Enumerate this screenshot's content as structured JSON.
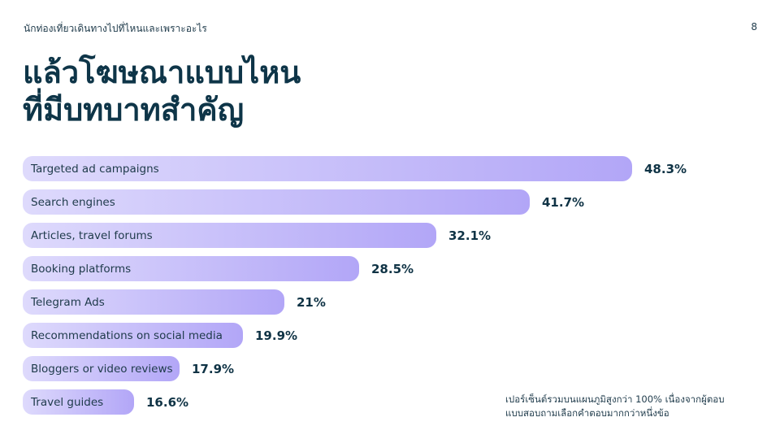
{
  "header": {
    "kicker": "นักท่องเที่ยวเดินทางไปที่ไหนและเพราะอะไร",
    "page_number": "8"
  },
  "title_line1": "แล้วโฆษณาแบบไหน",
  "title_line2": "ที่มีบทบาทสำคัญ",
  "chart_data": {
    "type": "bar",
    "orientation": "horizontal",
    "categories": [
      "Targeted ad campaigns",
      "Search engines",
      "Articles, travel forums",
      "Booking platforms",
      "Telegram Ads",
      "Recommendations on social media",
      "Bloggers or video reviews",
      "Travel guides"
    ],
    "values": [
      48.3,
      41.7,
      32.1,
      28.5,
      21,
      19.9,
      17.9,
      16.6
    ],
    "value_labels": [
      "48.3%",
      "41.7%",
      "32.1%",
      "28.5%",
      "21%",
      "19.9%",
      "17.9%",
      "16.6%"
    ],
    "unit": "%",
    "grid": false,
    "colors": {
      "bar_start": "#dedafc",
      "bar_end": "#b2a6f7",
      "text": "#0f3345"
    }
  },
  "footnote_line1": "เปอร์เซ็นต์รวมบนแผนภูมิสูงกว่า 100% เนื่องจากผู้ตอบ",
  "footnote_line2": "แบบสอบถามเลือกคำตอบมากกว่าหนึ่งข้อ"
}
